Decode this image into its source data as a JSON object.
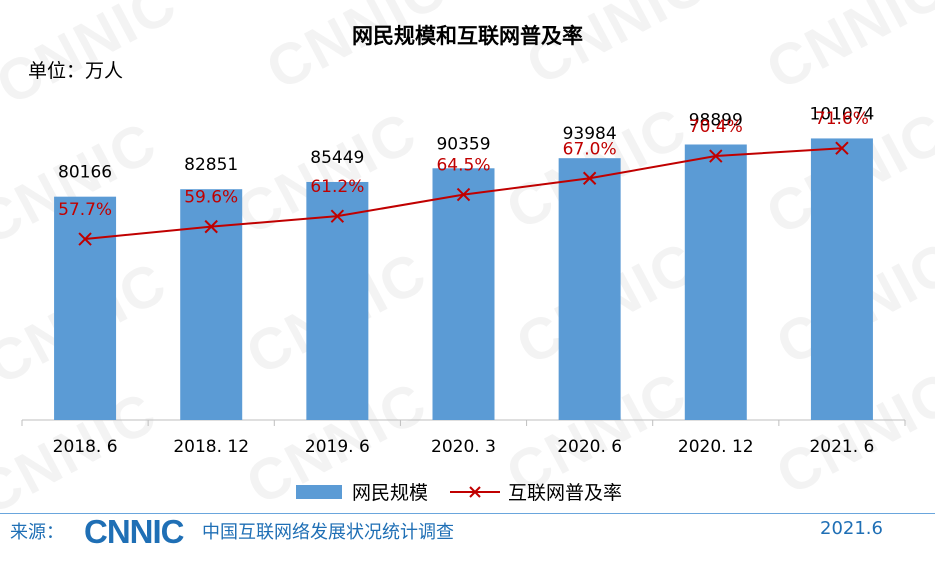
{
  "title": "网民规模和互联网普及率",
  "unit_label": "单位：万人",
  "watermark_text": "CNNIC",
  "chart_data": {
    "type": "bar",
    "categories": [
      "2018.6",
      "2018.12",
      "2019.6",
      "2020.3",
      "2020.6",
      "2020.12",
      "2021.6"
    ],
    "series": [
      {
        "name": "网民规模",
        "type": "bar",
        "values": [
          80166,
          82851,
          85449,
          90359,
          93984,
          98899,
          101074
        ],
        "labels": [
          "80166",
          "82851",
          "85449",
          "90359",
          "93984",
          "98899",
          "101074"
        ],
        "color": "#5b9bd5"
      },
      {
        "name": "互联网普及率",
        "type": "line",
        "values": [
          57.7,
          59.6,
          61.2,
          64.5,
          67.0,
          70.4,
          71.6
        ],
        "labels": [
          "57.7%",
          "59.6%",
          "61.2%",
          "64.5%",
          "67.0%",
          "70.4%",
          "71.6%"
        ],
        "color": "#c00000",
        "marker": "x"
      }
    ],
    "grid": false,
    "legend": "bottom"
  },
  "footer": {
    "source_label": "来源：",
    "logo_text": "CNNIC",
    "organization": "中国互联网络发展状况统计调查",
    "date": "2021.6"
  }
}
